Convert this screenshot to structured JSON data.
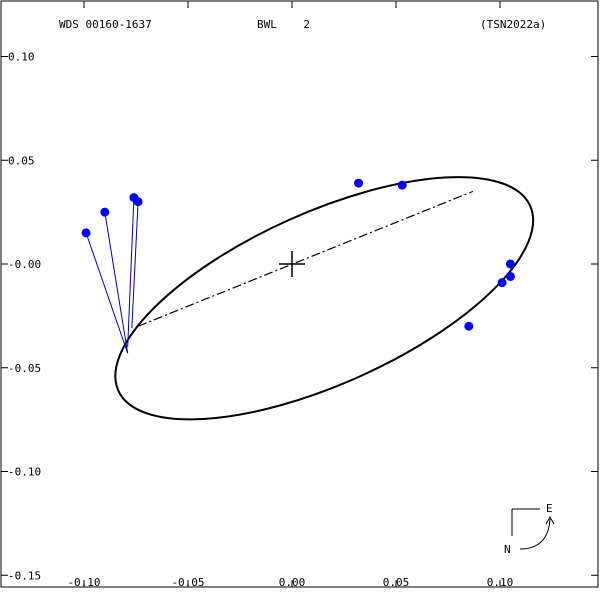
{
  "header": {
    "designation": "WDS 00160-1637",
    "discoverer": "BWL    2",
    "reference": "(TSN2022a)"
  },
  "compass": {
    "east_label": "E",
    "north_label": "N"
  },
  "chart_data": {
    "type": "scatter",
    "title": "",
    "xlabel": "",
    "ylabel": "",
    "xlim": [
      -0.1,
      0.14
    ],
    "ylim": [
      -0.15,
      0.12
    ],
    "grid": false,
    "x_ticks": [
      {
        "value": -0.1,
        "label": "-0.10"
      },
      {
        "value": -0.05,
        "label": "-0.05"
      },
      {
        "value": 0.0,
        "label": "0.00"
      },
      {
        "value": 0.05,
        "label": "0.05"
      },
      {
        "value": 0.1,
        "label": "0.10"
      }
    ],
    "y_ticks": [
      {
        "value": 0.1,
        "label": "0.10"
      },
      {
        "value": 0.05,
        "label": "0.05"
      },
      {
        "value": 0.0,
        "label": "-0.00"
      },
      {
        "value": -0.05,
        "label": "-0.05"
      },
      {
        "value": -0.1,
        "label": "-0.10"
      },
      {
        "value": -0.15,
        "label": "-0.15"
      }
    ],
    "primary": {
      "x": 0.0,
      "y": 0.0
    },
    "orbit": {
      "center": [
        0.0155,
        -0.0165
      ],
      "semi_major": 0.1085,
      "semi_minor": 0.0414,
      "angle_deg": 24.16,
      "color": "#000000"
    },
    "line_of_nodes": {
      "from": [
        -0.074,
        -0.03
      ],
      "to": [
        0.087,
        0.035
      ]
    },
    "observations": [
      {
        "x": -0.099,
        "y": 0.015,
        "anchor": [
          -0.079,
          -0.043
        ]
      },
      {
        "x": -0.09,
        "y": 0.025,
        "anchor": [
          -0.079,
          -0.043
        ]
      },
      {
        "x": -0.076,
        "y": 0.032,
        "anchor": [
          -0.079,
          -0.04
        ]
      },
      {
        "x": -0.074,
        "y": 0.03,
        "anchor": [
          -0.077,
          -0.031
        ]
      },
      {
        "x": 0.032,
        "y": 0.039
      },
      {
        "x": 0.053,
        "y": 0.038
      },
      {
        "x": 0.105,
        "y": 0.0
      },
      {
        "x": 0.105,
        "y": -0.006
      },
      {
        "x": 0.101,
        "y": -0.009
      },
      {
        "x": 0.085,
        "y": -0.03
      }
    ],
    "observation_color": "#0000ff",
    "residual_color": "#0000aa"
  }
}
